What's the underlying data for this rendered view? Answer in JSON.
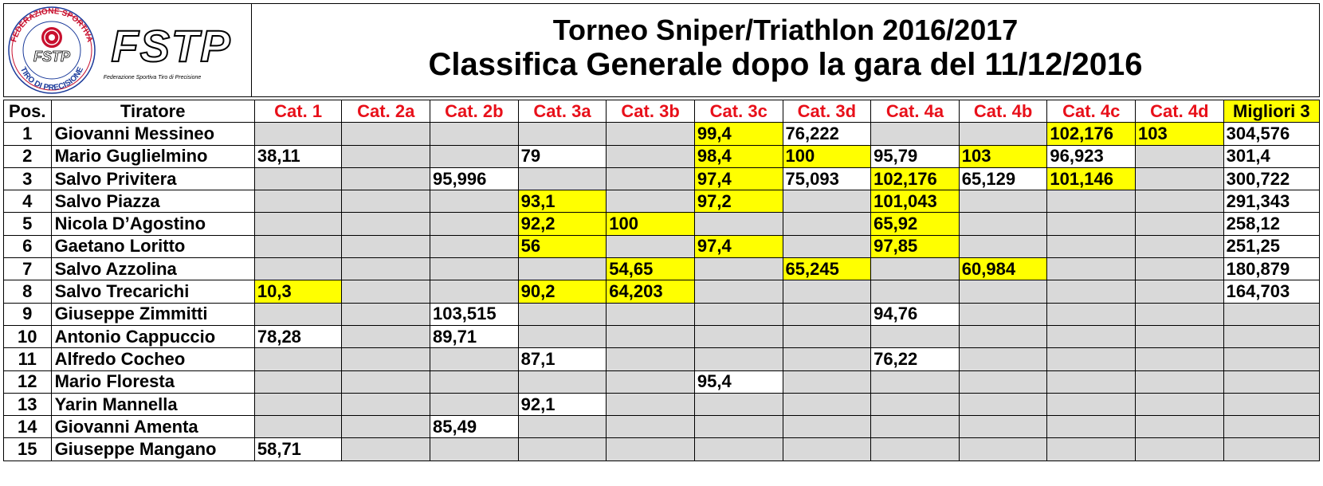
{
  "logo": {
    "ring_text_top": "FEDERAZIONE SPORTIVA",
    "ring_text_bottom": "TIRO DI PRECISIONE",
    "badge": "FSTP",
    "wordmark": "FSTP",
    "tagline": "Federazione Sportiva Tiro di Precisione"
  },
  "title": {
    "line1": "Torneo Sniper/Triathlon 2016/2017",
    "line2": "Classifica Generale dopo la gara del 11/12/2016"
  },
  "headers": {
    "pos": "Pos.",
    "name": "Tiratore",
    "cats": [
      "Cat. 1",
      "Cat. 2a",
      "Cat. 2b",
      "Cat. 3a",
      "Cat. 3b",
      "Cat. 3c",
      "Cat. 3d",
      "Cat. 4a",
      "Cat. 4b",
      "Cat. 4c",
      "Cat. 4d"
    ],
    "best": "Migliori 3"
  },
  "colors": {
    "highlight": "#ffff00",
    "empty": "#d9d9d9",
    "category_header": "#e8101a"
  },
  "rows": [
    {
      "pos": "1",
      "name": "Giovanni Messineo",
      "cells": [
        [
          "",
          "g"
        ],
        [
          "",
          "g"
        ],
        [
          "",
          "g"
        ],
        [
          "",
          "g"
        ],
        [
          "",
          "g"
        ],
        [
          "99,4",
          "y"
        ],
        [
          "76,222",
          "w"
        ],
        [
          "",
          "g"
        ],
        [
          "",
          "g"
        ],
        [
          "102,176",
          "y"
        ],
        [
          "103",
          "y"
        ]
      ],
      "best": "304,576"
    },
    {
      "pos": "2",
      "name": "Mario Guglielmino",
      "cells": [
        [
          "38,11",
          "w"
        ],
        [
          "",
          "g"
        ],
        [
          "",
          "g"
        ],
        [
          "79",
          "w"
        ],
        [
          "",
          "g"
        ],
        [
          "98,4",
          "y"
        ],
        [
          "100",
          "y"
        ],
        [
          "95,79",
          "w"
        ],
        [
          "103",
          "y"
        ],
        [
          "96,923",
          "w"
        ],
        [
          "",
          "g"
        ]
      ],
      "best": "301,4"
    },
    {
      "pos": "3",
      "name": "Salvo Privitera",
      "cells": [
        [
          "",
          "g"
        ],
        [
          "",
          "g"
        ],
        [
          "95,996",
          "w"
        ],
        [
          "",
          "g"
        ],
        [
          "",
          "g"
        ],
        [
          "97,4",
          "y"
        ],
        [
          "75,093",
          "w"
        ],
        [
          "102,176",
          "y"
        ],
        [
          "65,129",
          "w"
        ],
        [
          "101,146",
          "y"
        ],
        [
          "",
          "g"
        ]
      ],
      "best": "300,722"
    },
    {
      "pos": "4",
      "name": "Salvo Piazza",
      "cells": [
        [
          "",
          "g"
        ],
        [
          "",
          "g"
        ],
        [
          "",
          "g"
        ],
        [
          "93,1",
          "y"
        ],
        [
          "",
          "g"
        ],
        [
          "97,2",
          "y"
        ],
        [
          "",
          "g"
        ],
        [
          "101,043",
          "y"
        ],
        [
          "",
          "g"
        ],
        [
          "",
          "g"
        ],
        [
          "",
          "g"
        ]
      ],
      "best": "291,343"
    },
    {
      "pos": "5",
      "name": "Nicola D’Agostino",
      "cells": [
        [
          "",
          "g"
        ],
        [
          "",
          "g"
        ],
        [
          "",
          "g"
        ],
        [
          "92,2",
          "y"
        ],
        [
          "100",
          "y"
        ],
        [
          "",
          "g"
        ],
        [
          "",
          "g"
        ],
        [
          "65,92",
          "y"
        ],
        [
          "",
          "g"
        ],
        [
          "",
          "g"
        ],
        [
          "",
          "g"
        ]
      ],
      "best": "258,12"
    },
    {
      "pos": "6",
      "name": "Gaetano Loritto",
      "cells": [
        [
          "",
          "g"
        ],
        [
          "",
          "g"
        ],
        [
          "",
          "g"
        ],
        [
          "56",
          "y"
        ],
        [
          "",
          "g"
        ],
        [
          "97,4",
          "y"
        ],
        [
          "",
          "g"
        ],
        [
          "97,85",
          "y"
        ],
        [
          "",
          "g"
        ],
        [
          "",
          "g"
        ],
        [
          "",
          "g"
        ]
      ],
      "best": "251,25"
    },
    {
      "pos": "7",
      "name": "Salvo Azzolina",
      "cells": [
        [
          "",
          "g"
        ],
        [
          "",
          "g"
        ],
        [
          "",
          "g"
        ],
        [
          "",
          "g"
        ],
        [
          "54,65",
          "y"
        ],
        [
          "",
          "g"
        ],
        [
          "65,245",
          "y"
        ],
        [
          "",
          "g"
        ],
        [
          "60,984",
          "y"
        ],
        [
          "",
          "g"
        ],
        [
          "",
          "g"
        ]
      ],
      "best": "180,879"
    },
    {
      "pos": "8",
      "name": "Salvo Trecarichi",
      "cells": [
        [
          "10,3",
          "y"
        ],
        [
          "",
          "g"
        ],
        [
          "",
          "g"
        ],
        [
          "90,2",
          "y"
        ],
        [
          "64,203",
          "y"
        ],
        [
          "",
          "g"
        ],
        [
          "",
          "g"
        ],
        [
          "",
          "g"
        ],
        [
          "",
          "g"
        ],
        [
          "",
          "g"
        ],
        [
          "",
          "g"
        ]
      ],
      "best": "164,703"
    },
    {
      "pos": "9",
      "name": "Giuseppe Zimmitti",
      "cells": [
        [
          "",
          "g"
        ],
        [
          "",
          "g"
        ],
        [
          "103,515",
          "w"
        ],
        [
          "",
          "g"
        ],
        [
          "",
          "g"
        ],
        [
          "",
          "g"
        ],
        [
          "",
          "g"
        ],
        [
          "94,76",
          "w"
        ],
        [
          "",
          "g"
        ],
        [
          "",
          "g"
        ],
        [
          "",
          "g"
        ]
      ],
      "best": ""
    },
    {
      "pos": "10",
      "name": "Antonio Cappuccio",
      "cells": [
        [
          "78,28",
          "w"
        ],
        [
          "",
          "g"
        ],
        [
          "89,71",
          "w"
        ],
        [
          "",
          "g"
        ],
        [
          "",
          "g"
        ],
        [
          "",
          "g"
        ],
        [
          "",
          "g"
        ],
        [
          "",
          "g"
        ],
        [
          "",
          "g"
        ],
        [
          "",
          "g"
        ],
        [
          "",
          "g"
        ]
      ],
      "best": ""
    },
    {
      "pos": "11",
      "name": "Alfredo Cocheo",
      "cells": [
        [
          "",
          "g"
        ],
        [
          "",
          "g"
        ],
        [
          "",
          "g"
        ],
        [
          "87,1",
          "w"
        ],
        [
          "",
          "g"
        ],
        [
          "",
          "g"
        ],
        [
          "",
          "g"
        ],
        [
          "76,22",
          "w"
        ],
        [
          "",
          "g"
        ],
        [
          "",
          "g"
        ],
        [
          "",
          "g"
        ]
      ],
      "best": ""
    },
    {
      "pos": "12",
      "name": "Mario Floresta",
      "cells": [
        [
          "",
          "g"
        ],
        [
          "",
          "g"
        ],
        [
          "",
          "g"
        ],
        [
          "",
          "g"
        ],
        [
          "",
          "g"
        ],
        [
          "95,4",
          "w"
        ],
        [
          "",
          "g"
        ],
        [
          "",
          "g"
        ],
        [
          "",
          "g"
        ],
        [
          "",
          "g"
        ],
        [
          "",
          "g"
        ]
      ],
      "best": ""
    },
    {
      "pos": "13",
      "name": "Yarin Mannella",
      "cells": [
        [
          "",
          "g"
        ],
        [
          "",
          "g"
        ],
        [
          "",
          "g"
        ],
        [
          "92,1",
          "w"
        ],
        [
          "",
          "g"
        ],
        [
          "",
          "g"
        ],
        [
          "",
          "g"
        ],
        [
          "",
          "g"
        ],
        [
          "",
          "g"
        ],
        [
          "",
          "g"
        ],
        [
          "",
          "g"
        ]
      ],
      "best": ""
    },
    {
      "pos": "14",
      "name": "Giovanni Amenta",
      "cells": [
        [
          "",
          "g"
        ],
        [
          "",
          "g"
        ],
        [
          "85,49",
          "w"
        ],
        [
          "",
          "g"
        ],
        [
          "",
          "g"
        ],
        [
          "",
          "g"
        ],
        [
          "",
          "g"
        ],
        [
          "",
          "g"
        ],
        [
          "",
          "g"
        ],
        [
          "",
          "g"
        ],
        [
          "",
          "g"
        ]
      ],
      "best": ""
    },
    {
      "pos": "15",
      "name": "Giuseppe Mangano",
      "cells": [
        [
          "58,71",
          "w"
        ],
        [
          "",
          "g"
        ],
        [
          "",
          "g"
        ],
        [
          "",
          "g"
        ],
        [
          "",
          "g"
        ],
        [
          "",
          "g"
        ],
        [
          "",
          "g"
        ],
        [
          "",
          "g"
        ],
        [
          "",
          "g"
        ],
        [
          "",
          "g"
        ],
        [
          "",
          "g"
        ]
      ],
      "best": ""
    }
  ]
}
